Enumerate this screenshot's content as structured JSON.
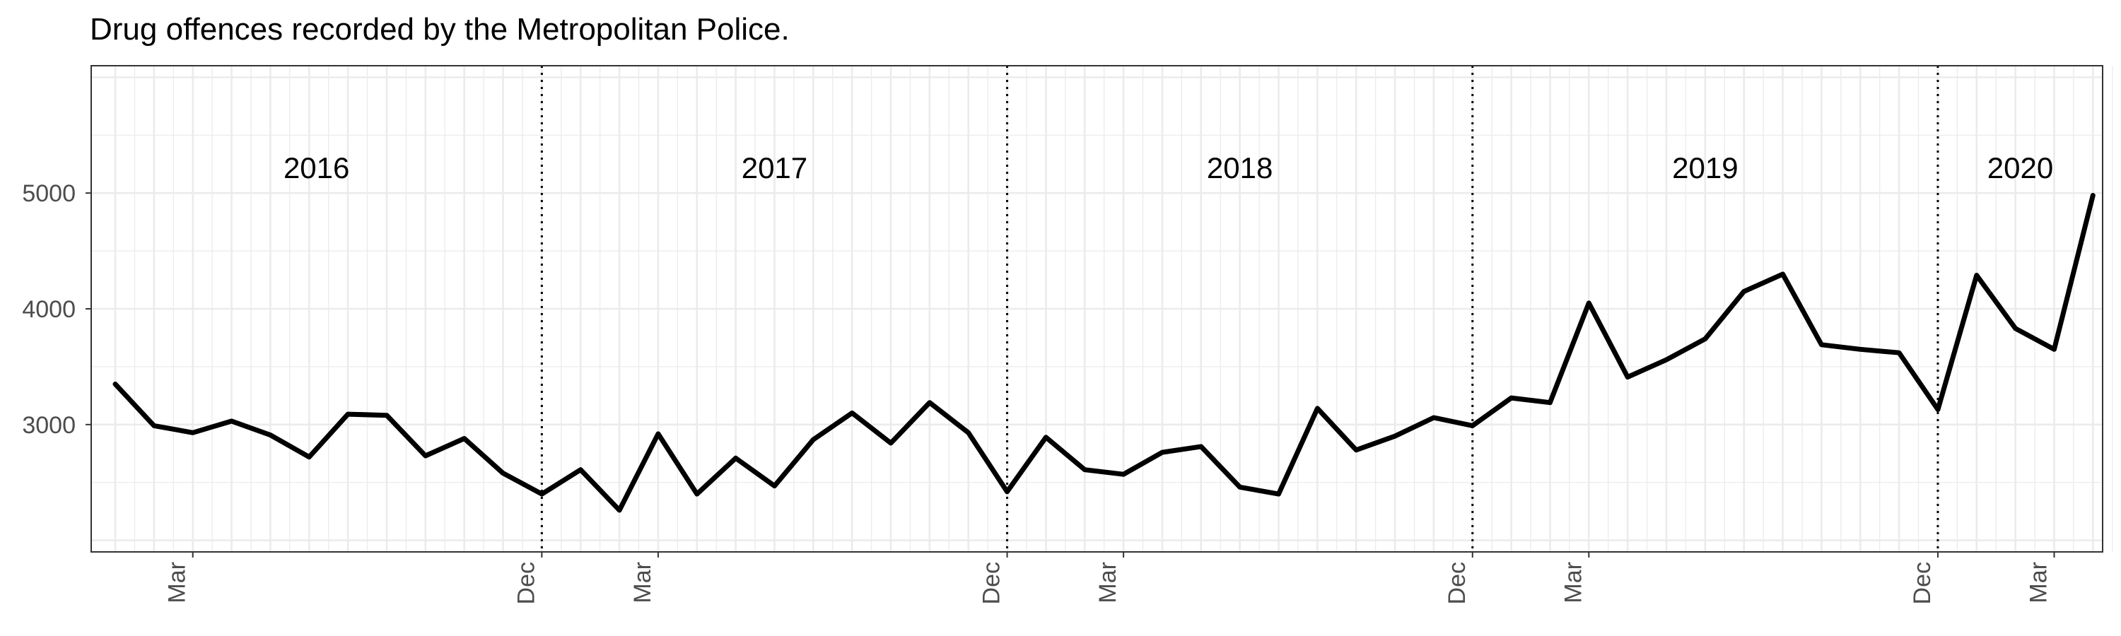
{
  "chart_data": {
    "type": "line",
    "title": "Drug offences recorded by the Metropolitan Police.",
    "xlabel": "",
    "ylabel": "",
    "x": [
      "2016-01",
      "2016-02",
      "2016-03",
      "2016-04",
      "2016-05",
      "2016-06",
      "2016-07",
      "2016-08",
      "2016-09",
      "2016-10",
      "2016-11",
      "2016-12",
      "2017-01",
      "2017-02",
      "2017-03",
      "2017-04",
      "2017-05",
      "2017-06",
      "2017-07",
      "2017-08",
      "2017-09",
      "2017-10",
      "2017-11",
      "2017-12",
      "2018-01",
      "2018-02",
      "2018-03",
      "2018-04",
      "2018-05",
      "2018-06",
      "2018-07",
      "2018-08",
      "2018-09",
      "2018-10",
      "2018-11",
      "2018-12",
      "2019-01",
      "2019-02",
      "2019-03",
      "2019-04",
      "2019-05",
      "2019-06",
      "2019-07",
      "2019-08",
      "2019-09",
      "2019-10",
      "2019-11",
      "2019-12",
      "2020-01",
      "2020-02",
      "2020-03",
      "2020-04",
      "2020-05"
    ],
    "series": [
      {
        "values": [
          3350,
          2990,
          2930,
          3030,
          2910,
          2720,
          3090,
          3080,
          2730,
          2880,
          2580,
          2400,
          2610,
          2260,
          2920,
          2400,
          2710,
          2470,
          2870,
          3100,
          2840,
          3190,
          2930,
          2420,
          2890,
          2610,
          2570,
          2760,
          2810,
          2460,
          2400,
          3140,
          2780,
          2900,
          3060,
          2990,
          3230,
          3190,
          4050,
          3410,
          3560,
          3740,
          4150,
          4300,
          3690,
          3650,
          3620,
          3130,
          4290,
          3830,
          3650,
          4980,
          null
        ]
      }
    ],
    "xticks": [
      "Mar",
      "Dec",
      "Mar",
      "Dec",
      "Mar",
      "Dec",
      "Mar",
      "Dec",
      "Mar"
    ],
    "yticks": [
      3000,
      4000,
      5000
    ],
    "ylim": [
      1900,
      6100
    ],
    "year_labels": [
      "2016",
      "2017",
      "2018",
      "2019",
      "2020"
    ],
    "year_boundaries": [
      "2016-12",
      "2017-12",
      "2018-12",
      "2019-12"
    ],
    "line_color": "#000000",
    "boundary_style": "dotted",
    "grid": true,
    "legend": "none"
  }
}
